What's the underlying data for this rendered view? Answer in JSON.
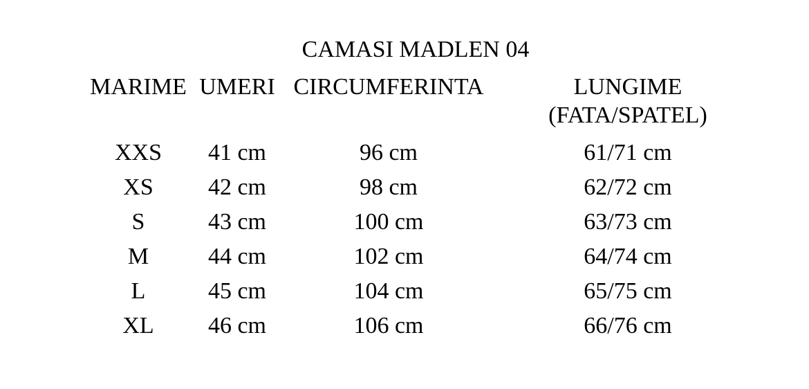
{
  "title": "CAMASI MADLEN 04",
  "colors": {
    "text": "#000000",
    "background": "#ffffff"
  },
  "table": {
    "headers": {
      "marime": "MARIME",
      "umeri": "UMERI",
      "circumferinta": "CIRCUMFERINTA",
      "lungime_line1": "LUNGIME",
      "lungime_line2": "(FATA/SPATEL)"
    },
    "rows": [
      {
        "marime": "XXS",
        "umeri": "41 cm",
        "circumferinta": "96 cm",
        "lungime": "61/71 cm"
      },
      {
        "marime": "XS",
        "umeri": "42 cm",
        "circumferinta": "98 cm",
        "lungime": "62/72 cm"
      },
      {
        "marime": "S",
        "umeri": "43 cm",
        "circumferinta": "100 cm",
        "lungime": "63/73 cm"
      },
      {
        "marime": "M",
        "umeri": "44 cm",
        "circumferinta": "102 cm",
        "lungime": "64/74 cm"
      },
      {
        "marime": "L",
        "umeri": "45 cm",
        "circumferinta": "104 cm",
        "lungime": "65/75 cm"
      },
      {
        "marime": "XL",
        "umeri": "46 cm",
        "circumferinta": "106 cm",
        "lungime": "66/76 cm"
      }
    ]
  }
}
